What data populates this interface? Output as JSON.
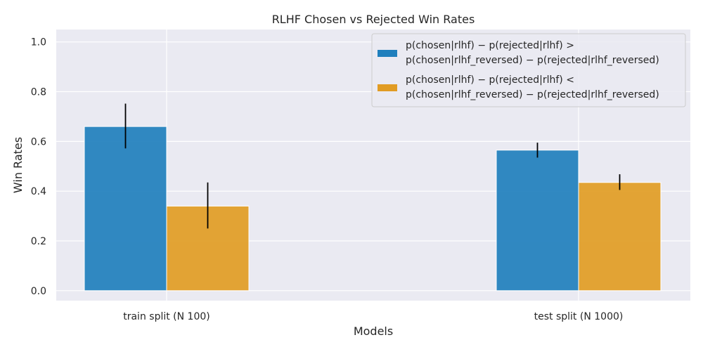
{
  "chart_data": {
    "type": "bar",
    "title": "RLHF Chosen vs Rejected Win Rates",
    "xlabel": "Models",
    "ylabel": "Win Rates",
    "categories": [
      "train split (N 100)",
      "test split (N 1000)"
    ],
    "ylim": [
      -0.04,
      1.05
    ],
    "yticks": [
      "0.0",
      "0.2",
      "0.4",
      "0.6",
      "0.8",
      "1.0"
    ],
    "grid": true,
    "legend_position": "top-right",
    "series": [
      {
        "name_lines": [
          "p(chosen|rlhf) − p(rejected|rlhf) >",
          "p(chosen|rlhf_reversed) − p(rejected|rlhf_reversed)"
        ],
        "color": "#1f7fbd",
        "values": [
          0.66,
          0.565
        ],
        "error_low": [
          0.572,
          0.535
        ],
        "error_high": [
          0.752,
          0.595
        ]
      },
      {
        "name_lines": [
          "p(chosen|rlhf) − p(rejected|rlhf) <",
          "p(chosen|rlhf_reversed) − p(rejected|rlhf_reversed)"
        ],
        "color": "#e19c24",
        "values": [
          0.34,
          0.435
        ],
        "error_low": [
          0.25,
          0.405
        ],
        "error_high": [
          0.435,
          0.468
        ]
      }
    ]
  }
}
